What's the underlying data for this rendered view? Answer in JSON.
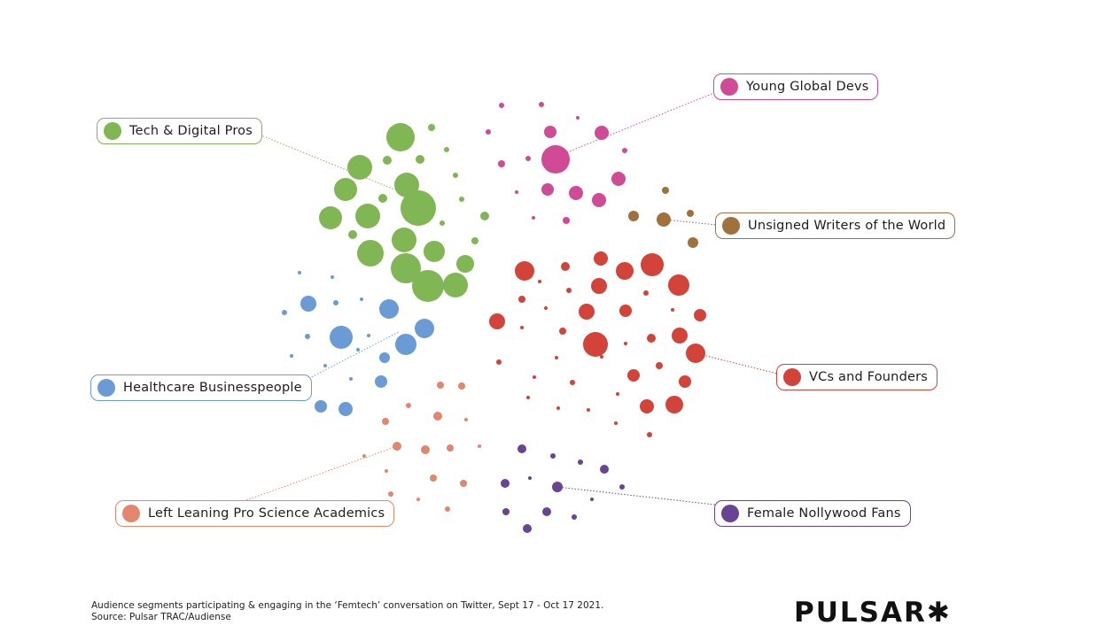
{
  "colors": {
    "tech": "#80b653",
    "young": "#cf4b95",
    "writers": "#a0703d",
    "vcs": "#d2433a",
    "health": "#6a9bd5",
    "academics": "#e2876d",
    "nollywood": "#6a4494"
  },
  "legend": {
    "tech": "Tech & Digital Pros",
    "young": "Young Global Devs",
    "writers": "Unsigned Writers of the World",
    "vcs": "VCs and Founders",
    "health": "Healthcare Businesspeople",
    "academics": "Left Leaning Pro Science Academics",
    "nollywood": "Female Nollywood Fans"
  },
  "caption": {
    "line1": "Audience segments participating & engaging in the ‘Femtech’ conversation on Twitter, Sept 17  - Oct 17 2021.",
    "line2": "Source: Pulsar TRAC/Audiense"
  },
  "brand": {
    "name": "PULSAR",
    "star": "✱"
  }
}
